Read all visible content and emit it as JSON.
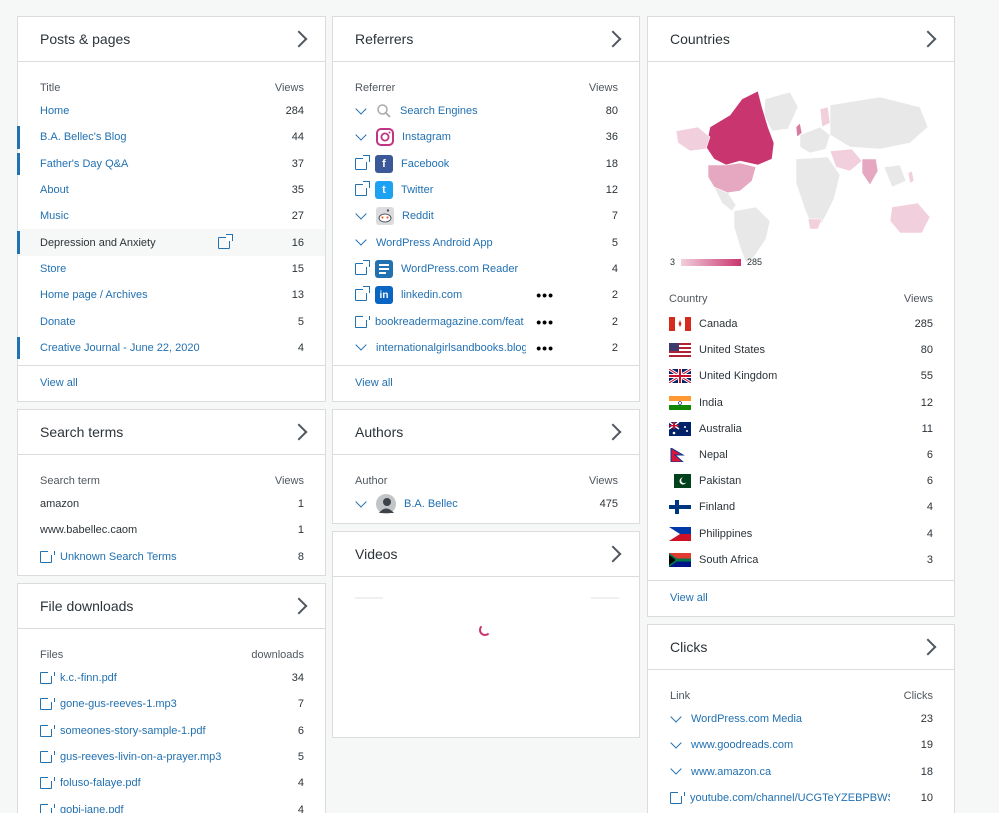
{
  "posts": {
    "title": "Posts & pages",
    "col_title": "Title",
    "col_views": "Views",
    "rows": [
      {
        "label": "Home",
        "views": "284"
      },
      {
        "label": "B.A. Bellec's Blog",
        "views": "44"
      },
      {
        "label": "Father's Day Q&A",
        "views": "37"
      },
      {
        "label": "About",
        "views": "35"
      },
      {
        "label": "Music",
        "views": "27"
      },
      {
        "label": "Depression and Anxiety",
        "views": "16"
      },
      {
        "label": "Store",
        "views": "15"
      },
      {
        "label": "Home page / Archives",
        "views": "13"
      },
      {
        "label": "Donate",
        "views": "5"
      },
      {
        "label": "Creative Journal - June 22, 2020",
        "views": "4"
      }
    ],
    "view_all": "View all"
  },
  "referrers": {
    "title": "Referrers",
    "col_referrer": "Referrer",
    "col_views": "Views",
    "rows": [
      {
        "label": "Search Engines",
        "views": "80",
        "icon": "search-icon"
      },
      {
        "label": "Instagram",
        "views": "36",
        "icon": "instagram-icon"
      },
      {
        "label": "Facebook",
        "views": "18",
        "icon": "facebook-icon"
      },
      {
        "label": "Twitter",
        "views": "12",
        "icon": "twitter-icon"
      },
      {
        "label": "Reddit",
        "views": "7",
        "icon": "reddit-icon"
      },
      {
        "label": "WordPress Android App",
        "views": "5"
      },
      {
        "label": "WordPress.com Reader",
        "views": "4",
        "icon": "reader-icon"
      },
      {
        "label": "linkedin.com",
        "views": "2",
        "icon": "linkedin-icon"
      },
      {
        "label": "bookreadermagazine.com/feat",
        "views": "2"
      },
      {
        "label": "internationalgirlsandbooks.blog",
        "views": "2"
      }
    ],
    "view_all": "View all"
  },
  "countries": {
    "title": "Countries",
    "legend_min": "3",
    "legend_max": "285",
    "col_country": "Country",
    "col_views": "Views",
    "rows": [
      {
        "label": "Canada",
        "views": "285"
      },
      {
        "label": "United States",
        "views": "80"
      },
      {
        "label": "United Kingdom",
        "views": "55"
      },
      {
        "label": "India",
        "views": "12"
      },
      {
        "label": "Australia",
        "views": "11"
      },
      {
        "label": "Nepal",
        "views": "6"
      },
      {
        "label": "Pakistan",
        "views": "6"
      },
      {
        "label": "Finland",
        "views": "4"
      },
      {
        "label": "Philippines",
        "views": "4"
      },
      {
        "label": "South Africa",
        "views": "3"
      }
    ],
    "view_all": "View all"
  },
  "search_terms": {
    "title": "Search terms",
    "col_term": "Search term",
    "col_views": "Views",
    "rows": [
      {
        "label": "amazon",
        "views": "1"
      },
      {
        "label": "www.babellec.caom",
        "views": "1"
      },
      {
        "label": "Unknown Search Terms",
        "views": "8"
      }
    ]
  },
  "authors": {
    "title": "Authors",
    "col_author": "Author",
    "col_views": "Views",
    "rows": [
      {
        "label": "B.A. Bellec",
        "views": "475"
      }
    ]
  },
  "videos": {
    "title": "Videos"
  },
  "file_downloads": {
    "title": "File downloads",
    "col_files": "Files",
    "col_downloads": "downloads",
    "rows": [
      {
        "label": "k.c.-finn.pdf",
        "views": "34"
      },
      {
        "label": "gone-gus-reeves-1.mp3",
        "views": "7"
      },
      {
        "label": "someones-story-sample-1.pdf",
        "views": "6"
      },
      {
        "label": "gus-reeves-livin-on-a-prayer.mp3",
        "views": "5"
      },
      {
        "label": "foluso-falaye.pdf",
        "views": "4"
      },
      {
        "label": "gobi-jane.pdf",
        "views": "4"
      }
    ]
  },
  "clicks": {
    "title": "Clicks",
    "col_link": "Link",
    "col_clicks": "Clicks",
    "rows": [
      {
        "label": "WordPress.com Media",
        "views": "23"
      },
      {
        "label": "www.goodreads.com",
        "views": "19"
      },
      {
        "label": "www.amazon.ca",
        "views": "18"
      },
      {
        "label": "youtube.com/channel/UCGTeYZEBPBWS",
        "views": "10"
      }
    ]
  },
  "colors": {
    "link": "#2271b1",
    "map_high": "#c9356e",
    "map_low": "#f2cfdc",
    "map_none": "#e8e8e8"
  }
}
